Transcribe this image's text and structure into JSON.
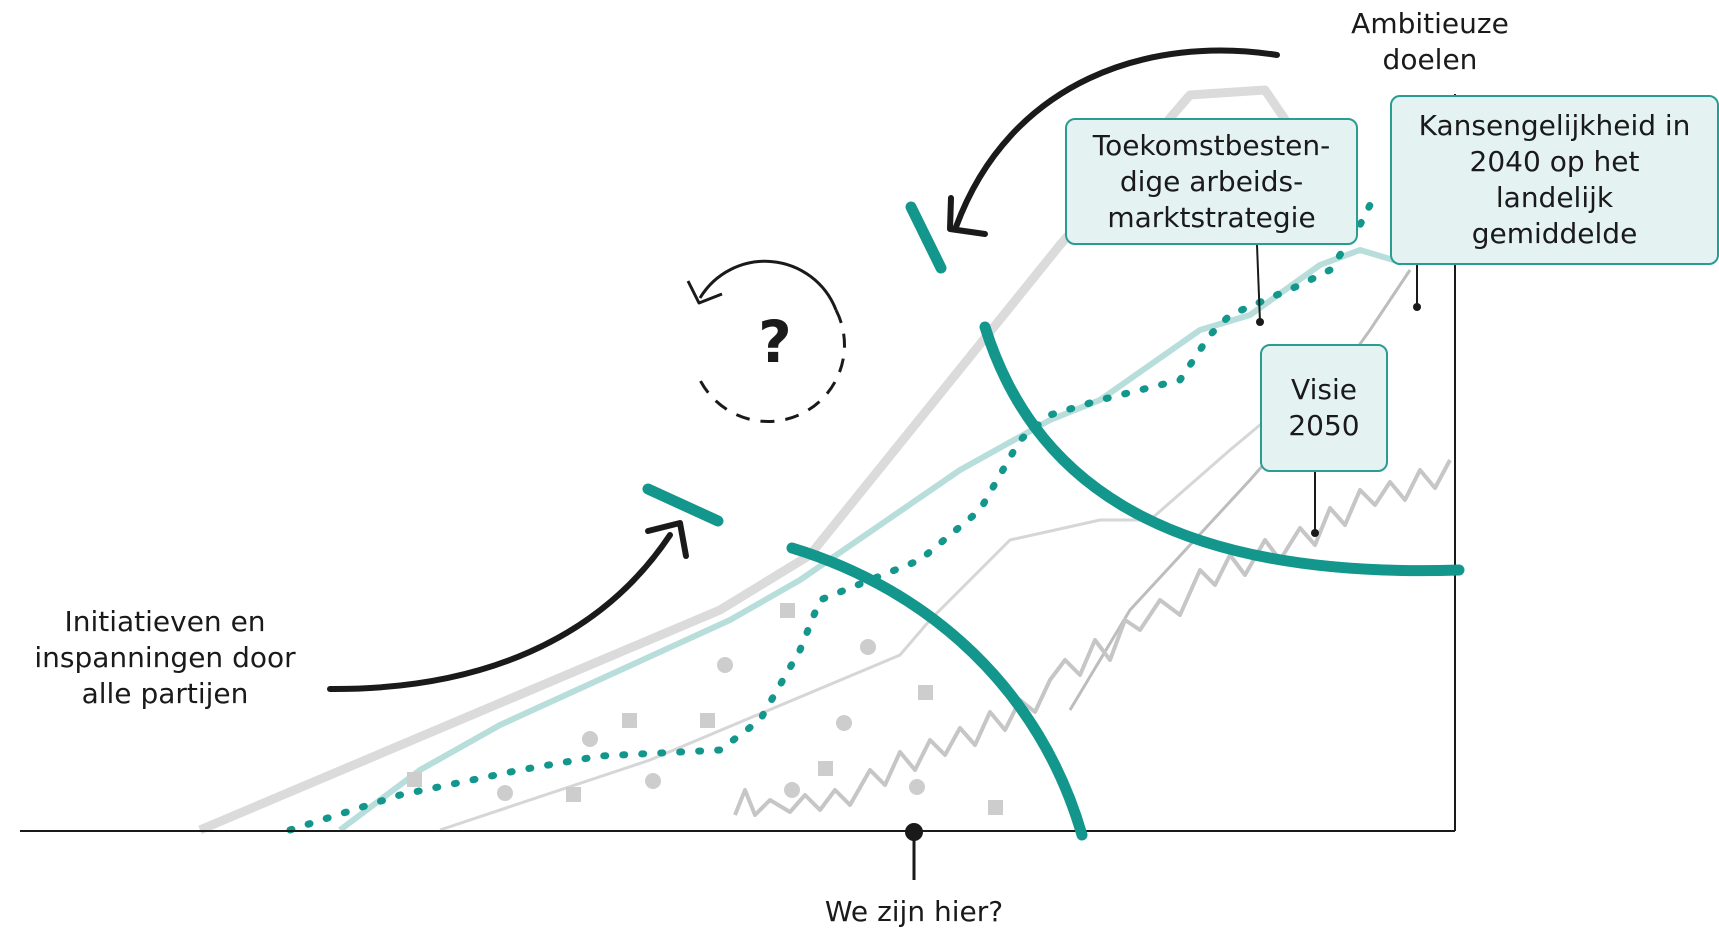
{
  "labels": {
    "ambitious_goals": [
      "Ambitieuze",
      "doelen"
    ],
    "initiatives": [
      "Initiatieven en",
      "inspanningen door",
      "alle partijen"
    ],
    "we_are_here": "We zijn hier?"
  },
  "callouts": {
    "strategy": [
      "Toekomstbesten-",
      "dige arbeids-",
      "marktstrategie"
    ],
    "equality": [
      "Kansengelijkheid in",
      "2040 op het",
      "landelijk",
      "gemiddelde"
    ],
    "vision": [
      "Visie",
      "2050"
    ]
  },
  "icons": {
    "question": "?",
    "cycle": "circular-arrow-icon"
  },
  "colors": {
    "teal": "#13968c",
    "teal_light": "#b7dedb",
    "grey": "#cfcfcf",
    "grey_dark": "#bdbdbd",
    "black": "#1a1a1a",
    "box_fill": "#e4f3f2",
    "box_border": "#2a9d93"
  }
}
